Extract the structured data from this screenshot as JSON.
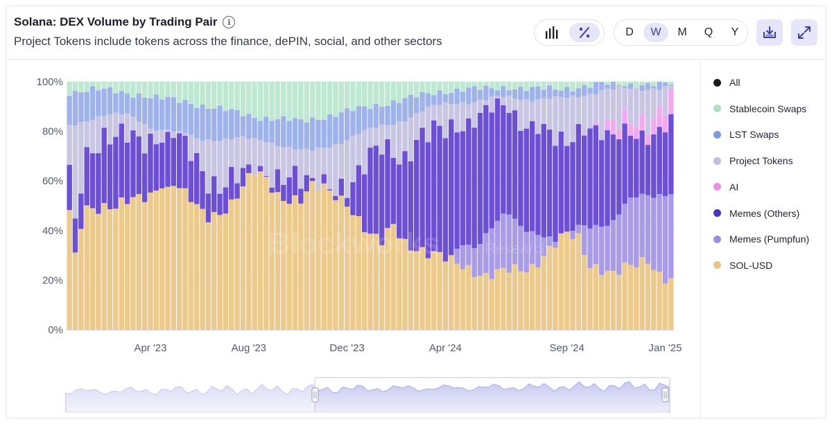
{
  "header": {
    "title": "Solana: DEX Volume by Trading Pair",
    "subtitle": "Project Tokens include tokens across the finance, dePIN, social, and other sectors"
  },
  "controls": {
    "periods": [
      "D",
      "W",
      "M",
      "Q",
      "Y"
    ],
    "active_period": "W"
  },
  "watermark": {
    "name": "Blockworks",
    "tag": "Research"
  },
  "colors": {
    "stablecoin": "#bfe8d2",
    "lst": "#9fb2ea",
    "project": "#c9c6e4",
    "ai": "#f2a9f0",
    "memes_others": "#6d4fd3",
    "memes_pumpfun": "#a99be6",
    "sol_usd": "#ecca8e",
    "accent": "#e6e6f8",
    "accent_dark": "#3b3f9a"
  },
  "legend": [
    {
      "label": "All",
      "color": "#1a1a1a"
    },
    {
      "label": "Stablecoin Swaps",
      "color": "#a8e0c2"
    },
    {
      "label": "LST Swaps",
      "color": "#7f98e2"
    },
    {
      "label": "Project Tokens",
      "color": "#c0bce0"
    },
    {
      "label": "AI",
      "color": "#ee8cea"
    },
    {
      "label": "Memes (Others)",
      "color": "#4b32c3"
    },
    {
      "label": "Memes (Pumpfun)",
      "color": "#9c8ce2"
    },
    {
      "label": "SOL-USD",
      "color": "#e8c485"
    }
  ],
  "chart_data": {
    "type": "bar",
    "stacked": true,
    "normalized": true,
    "ylim": [
      0,
      100
    ],
    "y_ticks": [
      "0%",
      "20%",
      "40%",
      "60%",
      "80%",
      "100%"
    ],
    "x_ticks": [
      "Apr '23",
      "Aug '23",
      "Dec '23",
      "Apr '24",
      "Sep '24",
      "Jan '25"
    ],
    "x_tick_weeks": [
      14,
      31,
      48,
      65,
      86,
      103
    ],
    "weeks": 105,
    "series_keys": [
      "sol_usd",
      "memes_pumpfun",
      "memes_others",
      "ai",
      "project",
      "lst",
      "stablecoin"
    ],
    "series_names": [
      "SOL-USD",
      "Memes (Pumpfun)",
      "Memes (Others)",
      "AI",
      "Project Tokens",
      "LST Swaps",
      "Stablecoin Swaps"
    ],
    "sol_usd_anchors": [
      [
        0,
        47
      ],
      [
        1,
        29
      ],
      [
        2,
        43
      ],
      [
        3,
        50
      ],
      [
        6,
        50
      ],
      [
        8,
        49
      ],
      [
        10,
        51
      ],
      [
        14,
        55
      ],
      [
        16,
        60
      ],
      [
        18,
        59
      ],
      [
        20,
        55
      ],
      [
        22,
        49
      ],
      [
        24,
        46
      ],
      [
        26,
        48
      ],
      [
        28,
        51
      ],
      [
        30,
        57
      ],
      [
        32,
        63
      ],
      [
        34,
        61
      ],
      [
        36,
        55
      ],
      [
        38,
        53
      ],
      [
        40,
        52
      ],
      [
        42,
        57
      ],
      [
        44,
        57
      ],
      [
        46,
        55
      ],
      [
        48,
        52
      ],
      [
        50,
        44
      ],
      [
        52,
        37
      ],
      [
        54,
        35
      ],
      [
        56,
        43
      ],
      [
        58,
        36
      ],
      [
        60,
        33
      ],
      [
        62,
        30
      ],
      [
        64,
        29
      ],
      [
        66,
        28
      ],
      [
        68,
        27
      ],
      [
        70,
        24
      ],
      [
        72,
        21
      ],
      [
        74,
        22
      ],
      [
        76,
        24
      ],
      [
        78,
        25
      ],
      [
        80,
        26
      ],
      [
        82,
        30
      ],
      [
        84,
        34
      ],
      [
        86,
        38
      ],
      [
        88,
        37
      ],
      [
        90,
        27
      ],
      [
        92,
        25
      ],
      [
        94,
        22
      ],
      [
        96,
        24
      ],
      [
        98,
        26
      ],
      [
        100,
        29
      ],
      [
        102,
        23
      ],
      [
        104,
        20
      ]
    ],
    "pumpfun_anchors": [
      [
        0,
        0
      ],
      [
        66,
        0
      ],
      [
        68,
        8
      ],
      [
        70,
        10
      ],
      [
        72,
        18
      ],
      [
        74,
        22
      ],
      [
        76,
        22
      ],
      [
        78,
        16
      ],
      [
        80,
        14
      ],
      [
        82,
        9
      ],
      [
        84,
        2
      ],
      [
        86,
        0
      ],
      [
        88,
        4
      ],
      [
        90,
        15
      ],
      [
        92,
        18
      ],
      [
        94,
        22
      ],
      [
        96,
        26
      ],
      [
        98,
        27
      ],
      [
        100,
        25
      ],
      [
        102,
        32
      ],
      [
        104,
        36
      ]
    ],
    "memes_others_anchors": [
      [
        0,
        18
      ],
      [
        1,
        15
      ],
      [
        3,
        22
      ],
      [
        6,
        26
      ],
      [
        10,
        28
      ],
      [
        14,
        22
      ],
      [
        16,
        18
      ],
      [
        18,
        20
      ],
      [
        20,
        20
      ],
      [
        22,
        20
      ],
      [
        24,
        15
      ],
      [
        26,
        10
      ],
      [
        28,
        9
      ],
      [
        30,
        5
      ],
      [
        32,
        0
      ],
      [
        34,
        3
      ],
      [
        36,
        7
      ],
      [
        38,
        9
      ],
      [
        40,
        7
      ],
      [
        42,
        1
      ],
      [
        44,
        3
      ],
      [
        46,
        4
      ],
      [
        48,
        5
      ],
      [
        50,
        17
      ],
      [
        52,
        32
      ],
      [
        54,
        40
      ],
      [
        56,
        30
      ],
      [
        58,
        33
      ],
      [
        60,
        42
      ],
      [
        62,
        48
      ],
      [
        64,
        52
      ],
      [
        66,
        54
      ],
      [
        68,
        47
      ],
      [
        70,
        50
      ],
      [
        72,
        49
      ],
      [
        74,
        47
      ],
      [
        76,
        44
      ],
      [
        78,
        42
      ],
      [
        80,
        42
      ],
      [
        82,
        42
      ],
      [
        84,
        40
      ],
      [
        86,
        37
      ],
      [
        88,
        40
      ],
      [
        90,
        40
      ],
      [
        92,
        36
      ],
      [
        94,
        33
      ],
      [
        96,
        30
      ],
      [
        98,
        26
      ],
      [
        100,
        24
      ],
      [
        102,
        25
      ],
      [
        104,
        28
      ]
    ],
    "ai_anchors": [
      [
        0,
        0
      ],
      [
        90,
        0
      ],
      [
        92,
        2
      ],
      [
        94,
        5
      ],
      [
        96,
        4
      ],
      [
        98,
        5
      ],
      [
        100,
        6
      ],
      [
        102,
        8
      ],
      [
        104,
        9
      ]
    ],
    "lst_anchors": [
      [
        0,
        14
      ],
      [
        6,
        10
      ],
      [
        10,
        9
      ],
      [
        14,
        12
      ],
      [
        18,
        13
      ],
      [
        22,
        14
      ],
      [
        26,
        12
      ],
      [
        30,
        10
      ],
      [
        34,
        9
      ],
      [
        38,
        11
      ],
      [
        42,
        13
      ],
      [
        46,
        12
      ],
      [
        50,
        10
      ],
      [
        54,
        9
      ],
      [
        58,
        8
      ],
      [
        62,
        6
      ],
      [
        66,
        5
      ],
      [
        70,
        5
      ],
      [
        74,
        4
      ],
      [
        78,
        4
      ],
      [
        82,
        4
      ],
      [
        86,
        4
      ],
      [
        90,
        3
      ],
      [
        94,
        2
      ],
      [
        98,
        2
      ],
      [
        102,
        1
      ],
      [
        104,
        1
      ]
    ],
    "stablecoin_anchors": [
      [
        0,
        4
      ],
      [
        4,
        3
      ],
      [
        8,
        4
      ],
      [
        12,
        5
      ],
      [
        16,
        7
      ],
      [
        20,
        8
      ],
      [
        24,
        10
      ],
      [
        28,
        12
      ],
      [
        32,
        14
      ],
      [
        36,
        15
      ],
      [
        40,
        16
      ],
      [
        44,
        14
      ],
      [
        48,
        12
      ],
      [
        52,
        10
      ],
      [
        56,
        8
      ],
      [
        60,
        6
      ],
      [
        64,
        4
      ],
      [
        68,
        3
      ],
      [
        72,
        3
      ],
      [
        76,
        2
      ],
      [
        80,
        3
      ],
      [
        84,
        3
      ],
      [
        88,
        2
      ],
      [
        92,
        1
      ],
      [
        96,
        1
      ],
      [
        100,
        1
      ],
      [
        104,
        1
      ]
    ]
  }
}
